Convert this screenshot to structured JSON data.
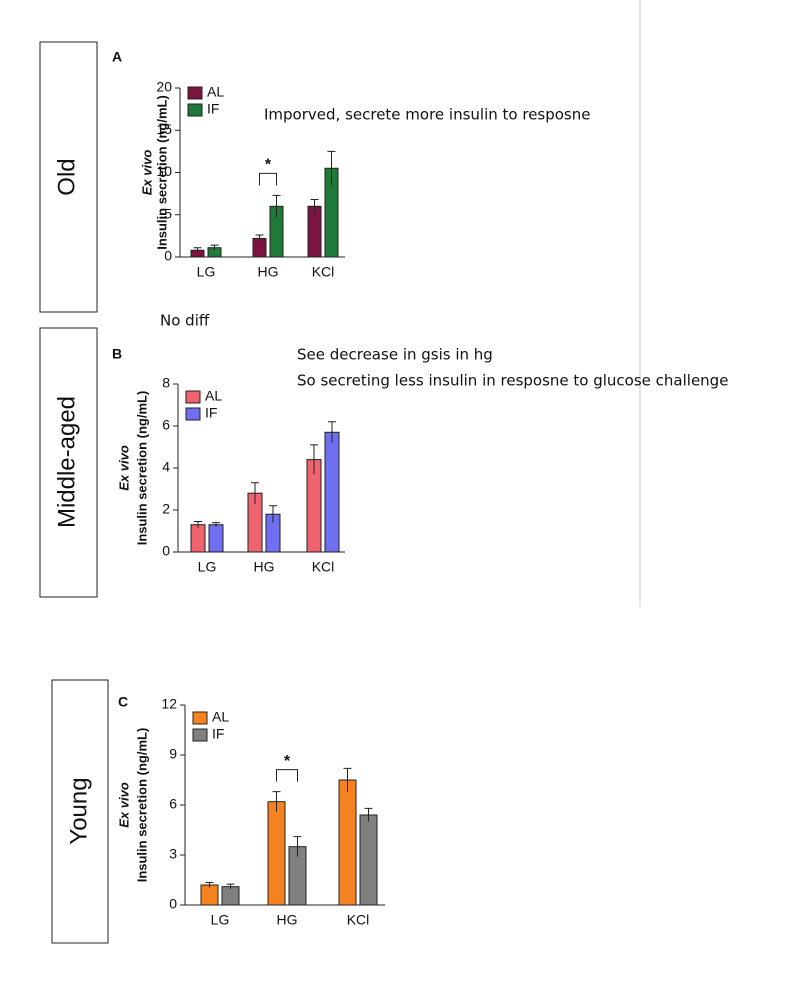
{
  "chart_data": [
    {
      "type": "bar",
      "panel": "A",
      "group_label": "Old",
      "ylabel_italic": "Ex vivo",
      "ylabel": "Insulin secretion (ng/mL)",
      "categories": [
        "LG",
        "HG",
        "KCl"
      ],
      "ylim": [
        0,
        20
      ],
      "yticks": [
        0,
        5,
        10,
        15,
        20
      ],
      "series": [
        {
          "name": "AL",
          "color": "#7b1540",
          "values": [
            0.8,
            2.2,
            6.0
          ],
          "errors": [
            0.3,
            0.4,
            0.8
          ]
        },
        {
          "name": "IF",
          "color": "#1f7a3a",
          "values": [
            1.1,
            6.0,
            10.5
          ],
          "errors": [
            0.3,
            1.3,
            2.0
          ]
        }
      ],
      "annotations": [
        {
          "text": "*",
          "category": "HG"
        }
      ]
    },
    {
      "type": "bar",
      "panel": "B",
      "group_label": "Middle-aged",
      "ylabel_italic": "Ex vivo",
      "ylabel": "Insulin secretion (ng/mL)",
      "categories": [
        "LG",
        "HG",
        "KCl"
      ],
      "ylim": [
        0,
        8
      ],
      "yticks": [
        0,
        2,
        4,
        6,
        8
      ],
      "series": [
        {
          "name": "AL",
          "color": "#f06470",
          "values": [
            1.3,
            2.8,
            4.4
          ],
          "errors": [
            0.15,
            0.5,
            0.7
          ]
        },
        {
          "name": "IF",
          "color": "#6f6ff0",
          "values": [
            1.3,
            1.8,
            5.7
          ],
          "errors": [
            0.1,
            0.4,
            0.5
          ]
        }
      ],
      "annotations": []
    },
    {
      "type": "bar",
      "panel": "C",
      "group_label": "Young",
      "ylabel_italic": "Ex vivo",
      "ylabel": "Insulin secretion (ng/mL)",
      "categories": [
        "LG",
        "HG",
        "KCl"
      ],
      "ylim": [
        0,
        12
      ],
      "yticks": [
        0,
        3,
        6,
        9,
        12
      ],
      "series": [
        {
          "name": "AL",
          "color": "#f58220",
          "values": [
            1.2,
            6.2,
            7.5
          ],
          "errors": [
            0.15,
            0.6,
            0.7
          ]
        },
        {
          "name": "IF",
          "color": "#808080",
          "values": [
            1.1,
            3.5,
            5.4
          ],
          "errors": [
            0.15,
            0.6,
            0.4
          ]
        }
      ],
      "annotations": [
        {
          "text": "*",
          "category": "HG"
        }
      ]
    }
  ],
  "notes": [
    "Imporved, secrete more insulin to resposne",
    "No diff",
    "See decrease in gsis in hg",
    "So secreting less insulin in resposne to glucose challenge"
  ]
}
